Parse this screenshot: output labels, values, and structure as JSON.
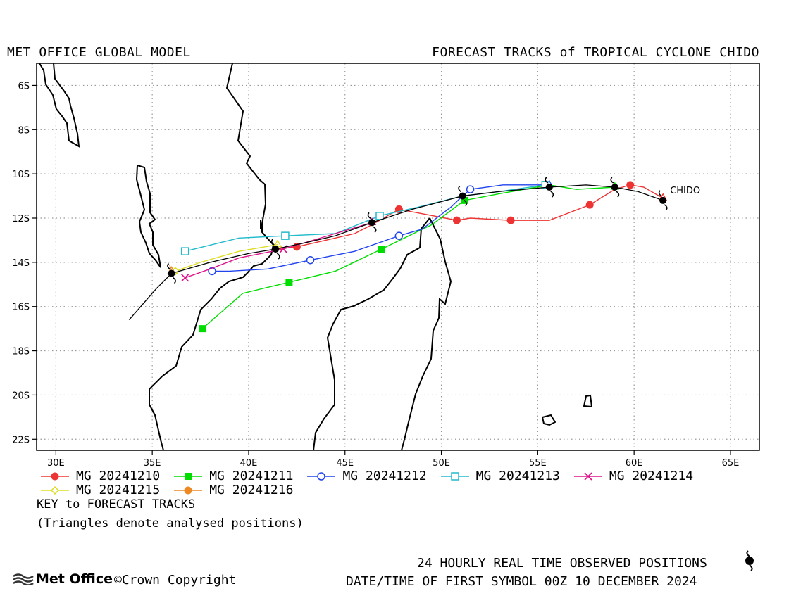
{
  "header": {
    "left_title": "MET OFFICE GLOBAL MODEL",
    "right_title": "FORECAST TRACKS of TROPICAL CYCLONE CHIDO"
  },
  "notes": {
    "key": "KEY to FORECAST TRACKS",
    "triangles": "(Triangles denote analysed positions)"
  },
  "footer": {
    "observed": "24 HOURLY REAL TIME OBSERVED POSITIONS",
    "first_symbol": "DATE/TIME OF FIRST SYMBOL 00Z 10 DECEMBER 2024",
    "logo": "Met Office",
    "copyright": "©Crown Copyright"
  },
  "chart_data": {
    "type": "line",
    "title": "FORECAST TRACKS of TROPICAL CYCLONE CHIDO",
    "storm_label": "CHIDO",
    "grid": true,
    "xlim": [
      29,
      66.5
    ],
    "ylim": [
      -22.5,
      -5
    ],
    "x_ticks": [
      30,
      35,
      40,
      45,
      50,
      55,
      60,
      65
    ],
    "x_tick_labels": [
      "30E",
      "35E",
      "40E",
      "45E",
      "50E",
      "55E",
      "60E",
      "65E"
    ],
    "y_ticks": [
      -6,
      -8,
      -10,
      -12,
      -14,
      -16,
      -18,
      -20,
      -22
    ],
    "y_tick_labels": [
      "6S",
      "8S",
      "10S",
      "12S",
      "14S",
      "16S",
      "18S",
      "20S",
      "22S"
    ],
    "observed_track": {
      "points": [
        [
          61.5,
          -11.2
        ],
        [
          60.2,
          -10.8
        ],
        [
          59.0,
          -10.6
        ],
        [
          57.5,
          -10.5
        ],
        [
          55.6,
          -10.6
        ],
        [
          53.0,
          -10.8
        ],
        [
          51.1,
          -11.0
        ],
        [
          48.5,
          -11.6
        ],
        [
          46.4,
          -12.2
        ],
        [
          44.5,
          -12.8
        ],
        [
          43.0,
          -13.1
        ],
        [
          41.4,
          -13.4
        ],
        [
          40.0,
          -13.6
        ],
        [
          38.0,
          -14.0
        ],
        [
          36.0,
          -14.5
        ],
        [
          35.2,
          -15.2
        ],
        [
          33.8,
          -16.6
        ]
      ],
      "symbols": [
        [
          61.5,
          -11.2
        ],
        [
          59.0,
          -10.6
        ],
        [
          55.6,
          -10.6
        ],
        [
          51.1,
          -11.0
        ],
        [
          46.4,
          -12.2
        ],
        [
          41.4,
          -13.4
        ],
        [
          36.0,
          -14.5
        ]
      ]
    },
    "series": [
      {
        "name": "MG 20241210",
        "color": "#ee3333",
        "marker": "dot",
        "points": [
          [
            61.5,
            -11.1
          ],
          [
            60.5,
            -10.6
          ],
          [
            59.8,
            -10.5
          ],
          [
            59.0,
            -10.7
          ],
          [
            57.7,
            -11.4
          ],
          [
            55.6,
            -12.1
          ],
          [
            53.6,
            -12.1
          ],
          [
            51.5,
            -12.0
          ],
          [
            50.8,
            -12.1
          ],
          [
            47.8,
            -11.6
          ],
          [
            46.4,
            -12.3
          ],
          [
            45.5,
            -12.7
          ],
          [
            44.0,
            -13.0
          ],
          [
            42.5,
            -13.3
          ],
          [
            41.4,
            -13.4
          ]
        ],
        "marked": [
          [
            59.8,
            -10.5
          ],
          [
            57.7,
            -11.4
          ],
          [
            53.6,
            -12.1
          ],
          [
            50.8,
            -12.1
          ],
          [
            47.8,
            -11.6
          ],
          [
            42.5,
            -13.3
          ]
        ]
      },
      {
        "name": "MG 20241211",
        "color": "#00dd00",
        "marker": "square",
        "points": [
          [
            59.0,
            -10.6
          ],
          [
            57.0,
            -10.7
          ],
          [
            55.6,
            -10.5
          ],
          [
            53.0,
            -10.9
          ],
          [
            51.2,
            -11.2
          ],
          [
            49.5,
            -12.3
          ],
          [
            46.9,
            -13.4
          ],
          [
            44.5,
            -14.4
          ],
          [
            42.1,
            -14.9
          ],
          [
            39.7,
            -15.4
          ],
          [
            37.6,
            -17.0
          ]
        ],
        "marked": [
          [
            51.2,
            -11.2
          ],
          [
            46.9,
            -13.4
          ],
          [
            42.1,
            -14.9
          ],
          [
            37.6,
            -17.0
          ]
        ]
      },
      {
        "name": "MG 20241212",
        "color": "#2244ee",
        "marker": "circle",
        "points": [
          [
            55.6,
            -10.5
          ],
          [
            53.2,
            -10.5
          ],
          [
            51.5,
            -10.7
          ],
          [
            51.1,
            -11.0
          ],
          [
            50.5,
            -11.5
          ],
          [
            49.0,
            -12.5
          ],
          [
            47.8,
            -12.8
          ],
          [
            45.5,
            -13.5
          ],
          [
            43.2,
            -13.9
          ],
          [
            41.0,
            -14.3
          ],
          [
            39.0,
            -14.4
          ],
          [
            38.1,
            -14.4
          ]
        ],
        "marked": [
          [
            51.5,
            -10.7
          ],
          [
            47.8,
            -12.8
          ],
          [
            43.2,
            -13.9
          ],
          [
            38.1,
            -14.4
          ]
        ]
      },
      {
        "name": "MG 20241213",
        "color": "#22bbcc",
        "marker": "open-square",
        "points": [
          [
            55.4,
            -10.5
          ],
          [
            53.0,
            -10.8
          ],
          [
            51.1,
            -11.0
          ],
          [
            48.8,
            -11.5
          ],
          [
            46.8,
            -11.9
          ],
          [
            44.5,
            -12.7
          ],
          [
            41.9,
            -12.8
          ],
          [
            39.5,
            -12.9
          ],
          [
            36.7,
            -13.5
          ]
        ],
        "marked": [
          [
            55.4,
            -10.5
          ],
          [
            46.8,
            -11.9
          ],
          [
            41.9,
            -12.8
          ],
          [
            36.7,
            -13.5
          ]
        ]
      },
      {
        "name": "MG 20241214",
        "color": "#dd1188",
        "marker": "x",
        "points": [
          [
            46.4,
            -12.2
          ],
          [
            44.5,
            -12.7
          ],
          [
            41.8,
            -13.4
          ],
          [
            39.5,
            -13.8
          ],
          [
            38.0,
            -14.3
          ],
          [
            36.7,
            -14.7
          ]
        ],
        "marked": [
          [
            41.8,
            -13.4
          ],
          [
            36.7,
            -14.7
          ]
        ]
      },
      {
        "name": "MG 20241215",
        "color": "#dddd22",
        "marker": "diamond",
        "points": [
          [
            41.5,
            -13.2
          ],
          [
            39.5,
            -13.5
          ],
          [
            37.5,
            -14.0
          ],
          [
            36.2,
            -14.4
          ]
        ],
        "marked": [
          [
            36.2,
            -14.4
          ]
        ]
      },
      {
        "name": "MG 20241216",
        "color": "#ee8822",
        "marker": "dot",
        "points": [
          [
            36.0,
            -14.4
          ],
          [
            35.9,
            -14.1
          ]
        ],
        "marked": []
      }
    ]
  }
}
